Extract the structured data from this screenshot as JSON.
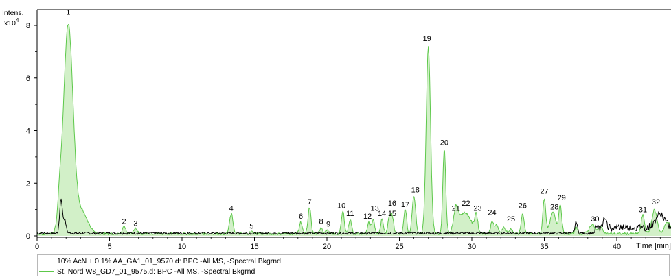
{
  "chart_data": {
    "type": "line",
    "ylabel": "Intens.",
    "y_multiplier": "x10",
    "y_multiplier_exp": "4",
    "xlabel": "Time [min]",
    "xlim": [
      0,
      44
    ],
    "ylim": [
      0,
      8.6
    ],
    "x_ticks": [
      "0",
      "5",
      "10",
      "15",
      "20",
      "25",
      "30",
      "35",
      "40"
    ],
    "x_tick_values": [
      0,
      5,
      10,
      15,
      20,
      25,
      30,
      35,
      40
    ],
    "y_ticks": [
      "0",
      "2",
      "4",
      "6",
      "8"
    ],
    "y_tick_values": [
      0,
      2,
      4,
      6,
      8
    ],
    "legend_placement": "bottom",
    "series": [
      {
        "name": "10% AcN + 0.1% AA_GA1_01_9570.d: BPC -All MS, -Spectral Bkgrnd",
        "color": "#000000",
        "fill": false,
        "baseline": 0.1,
        "peaks": [
          {
            "x": 1.65,
            "y": 1.3,
            "w": 0.09
          },
          {
            "x": 1.9,
            "y": 0.5,
            "w": 0.1
          },
          {
            "x": 37.2,
            "y": 0.45,
            "w": 0.08
          },
          {
            "x": 39.2,
            "y": 0.35,
            "w": 0.1
          },
          {
            "x": 43.0,
            "y": 0.5,
            "w": 0.3
          }
        ]
      },
      {
        "name": "St. Nord W8_GD7_01_9575.d: BPC -All MS, -Spectral Bkgrnd",
        "color": "#5dc84a",
        "fill": true,
        "fill_color": "#d2f0c8",
        "baseline": 0.08,
        "peaks": [
          {
            "x": 2.15,
            "y": 7.95,
            "w": 0.33
          },
          {
            "x": 1.55,
            "y": 0.8,
            "w": 0.12
          },
          {
            "x": 3.1,
            "y": 0.8,
            "w": 0.4
          },
          {
            "x": 6.0,
            "y": 0.28,
            "w": 0.12
          },
          {
            "x": 6.8,
            "y": 0.22,
            "w": 0.12
          },
          {
            "x": 13.4,
            "y": 0.75,
            "w": 0.12
          },
          {
            "x": 14.8,
            "y": 0.08,
            "w": 0.12
          },
          {
            "x": 18.2,
            "y": 0.45,
            "w": 0.1
          },
          {
            "x": 18.8,
            "y": 1.0,
            "w": 0.1
          },
          {
            "x": 19.6,
            "y": 0.25,
            "w": 0.1
          },
          {
            "x": 20.0,
            "y": 0.15,
            "w": 0.1
          },
          {
            "x": 21.1,
            "y": 0.85,
            "w": 0.1
          },
          {
            "x": 21.6,
            "y": 0.55,
            "w": 0.1
          },
          {
            "x": 22.9,
            "y": 0.45,
            "w": 0.1
          },
          {
            "x": 23.2,
            "y": 0.5,
            "w": 0.1
          },
          {
            "x": 23.8,
            "y": 0.55,
            "w": 0.1
          },
          {
            "x": 24.3,
            "y": 0.6,
            "w": 0.1
          },
          {
            "x": 24.5,
            "y": 0.65,
            "w": 0.1
          },
          {
            "x": 25.4,
            "y": 0.95,
            "w": 0.1
          },
          {
            "x": 26.0,
            "y": 1.45,
            "w": 0.12
          },
          {
            "x": 27.0,
            "y": 7.1,
            "w": 0.15
          },
          {
            "x": 28.1,
            "y": 3.25,
            "w": 0.1
          },
          {
            "x": 28.9,
            "y": 0.75,
            "w": 0.15
          },
          {
            "x": 29.5,
            "y": 0.8,
            "w": 0.45
          },
          {
            "x": 30.3,
            "y": 0.65,
            "w": 0.1
          },
          {
            "x": 31.4,
            "y": 0.5,
            "w": 0.1
          },
          {
            "x": 31.7,
            "y": 0.35,
            "w": 0.1
          },
          {
            "x": 32.2,
            "y": 0.25,
            "w": 0.15
          },
          {
            "x": 32.7,
            "y": 0.2,
            "w": 0.1
          },
          {
            "x": 33.5,
            "y": 0.75,
            "w": 0.1
          },
          {
            "x": 35.0,
            "y": 1.35,
            "w": 0.1
          },
          {
            "x": 35.6,
            "y": 0.8,
            "w": 0.2
          },
          {
            "x": 36.1,
            "y": 1.1,
            "w": 0.1
          },
          {
            "x": 37.2,
            "y": 0.3,
            "w": 0.08
          },
          {
            "x": 38.3,
            "y": 0.35,
            "w": 0.2
          },
          {
            "x": 38.9,
            "y": 0.25,
            "w": 0.15
          },
          {
            "x": 41.8,
            "y": 0.7,
            "w": 0.12
          },
          {
            "x": 42.6,
            "y": 0.9,
            "w": 0.18
          },
          {
            "x": 43.5,
            "y": 0.45,
            "w": 0.2
          }
        ]
      }
    ],
    "annotations": [
      {
        "label": "1",
        "x": 2.15,
        "y": 8.4
      },
      {
        "label": "2",
        "x": 6.0,
        "y": 0.45
      },
      {
        "label": "3",
        "x": 6.8,
        "y": 0.38
      },
      {
        "label": "4",
        "x": 13.4,
        "y": 0.95
      },
      {
        "label": "5",
        "x": 14.8,
        "y": 0.28
      },
      {
        "label": "6",
        "x": 18.2,
        "y": 0.65
      },
      {
        "label": "7",
        "x": 18.8,
        "y": 1.2
      },
      {
        "label": "8",
        "x": 19.6,
        "y": 0.45
      },
      {
        "label": "9",
        "x": 20.1,
        "y": 0.35
      },
      {
        "label": "10",
        "x": 21.0,
        "y": 1.05
      },
      {
        "label": "11",
        "x": 21.6,
        "y": 0.75
      },
      {
        "label": "12",
        "x": 22.8,
        "y": 0.65
      },
      {
        "label": "13",
        "x": 23.3,
        "y": 0.95
      },
      {
        "label": "14",
        "x": 23.8,
        "y": 0.75
      },
      {
        "label": "15",
        "x": 24.5,
        "y": 0.75
      },
      {
        "label": "16",
        "x": 24.5,
        "y": 1.15
      },
      {
        "label": "17",
        "x": 25.4,
        "y": 1.1
      },
      {
        "label": "18",
        "x": 26.1,
        "y": 1.65
      },
      {
        "label": "19",
        "x": 26.9,
        "y": 7.4
      },
      {
        "label": "20",
        "x": 28.1,
        "y": 3.45
      },
      {
        "label": "21",
        "x": 28.9,
        "y": 0.95
      },
      {
        "label": "22",
        "x": 29.6,
        "y": 1.15
      },
      {
        "label": "23",
        "x": 30.4,
        "y": 0.95
      },
      {
        "label": "24",
        "x": 31.4,
        "y": 0.8
      },
      {
        "label": "25",
        "x": 32.7,
        "y": 0.55
      },
      {
        "label": "26",
        "x": 33.5,
        "y": 1.05
      },
      {
        "label": "27",
        "x": 35.0,
        "y": 1.6
      },
      {
        "label": "28",
        "x": 35.7,
        "y": 1.0
      },
      {
        "label": "29",
        "x": 36.2,
        "y": 1.35
      },
      {
        "label": "30",
        "x": 38.5,
        "y": 0.55
      },
      {
        "label": "31",
        "x": 41.8,
        "y": 0.9
      },
      {
        "label": "32",
        "x": 42.7,
        "y": 1.2
      }
    ]
  }
}
